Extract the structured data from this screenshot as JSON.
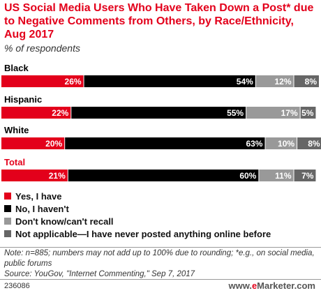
{
  "title": "US Social Media Users Who Have Taken Down a Post* due to Negative Comments from Others, by Race/Ethnicity, Aug 2017",
  "subtitle": "% of respondents",
  "chart_data": {
    "type": "bar",
    "orientation": "horizontal",
    "stacked": true,
    "categories": [
      "Black",
      "Hispanic",
      "White",
      "Total"
    ],
    "category_colors": [
      "#000000",
      "#000000",
      "#000000",
      "#e3001b"
    ],
    "series": [
      {
        "name": "Yes, I have",
        "color": "#e3001b",
        "values": [
          26,
          22,
          20,
          21
        ]
      },
      {
        "name": "No, I haven't",
        "color": "#000000",
        "values": [
          54,
          55,
          63,
          60
        ]
      },
      {
        "name": "Don't know/can't recall",
        "color": "#999999",
        "values": [
          12,
          17,
          10,
          11
        ]
      },
      {
        "name": "Not applicable—I have never posted anything online before",
        "color": "#666666",
        "values": [
          8,
          5,
          8,
          7
        ]
      }
    ],
    "value_suffix": "%",
    "xlim": [
      0,
      100
    ],
    "grid": false,
    "legend_position": "bottom-left"
  },
  "notes": {
    "note": "Note: n=885; numbers may not add up to 100% due to rounding; *e.g., on social media, public forums",
    "source": "Source: YouGov, \"Internet Commenting,\" Sep 7, 2017"
  },
  "footer": {
    "id": "236086",
    "brand_prefix": "www.",
    "brand_e": "e",
    "brand_rest": "Marketer.com"
  }
}
